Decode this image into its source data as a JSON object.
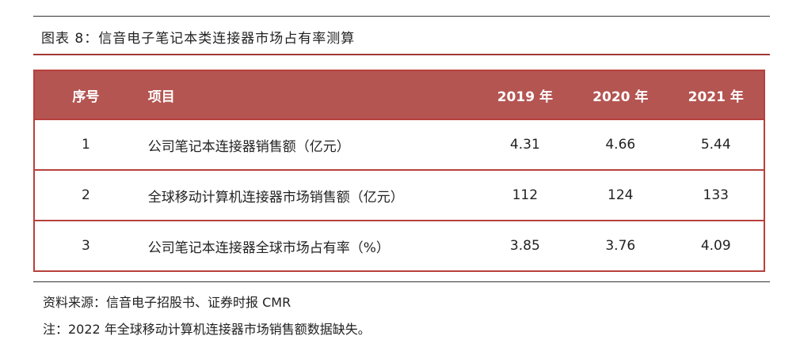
{
  "header": {
    "title": "图表 8：信音电子笔记本类连接器市场占有率测算"
  },
  "table": {
    "columns": [
      "序号",
      "项目",
      "2019 年",
      "2020 年",
      "2021 年"
    ],
    "rows": [
      [
        "1",
        "公司笔记本连接器销售额（亿元）",
        4.31,
        4.66,
        5.44
      ],
      [
        "2",
        "全球移动计算机连接器市场销售额（亿元）",
        112,
        124,
        133
      ],
      [
        "3",
        "公司笔记本连接器全球市场占有率（%）",
        3.85,
        3.76,
        4.09
      ]
    ]
  },
  "footer": {
    "source": "资料来源：信音电子招股书、证券时报 CMR",
    "note": "注：2022 年全球移动计算机连接器市场销售额数据缺失。"
  }
}
